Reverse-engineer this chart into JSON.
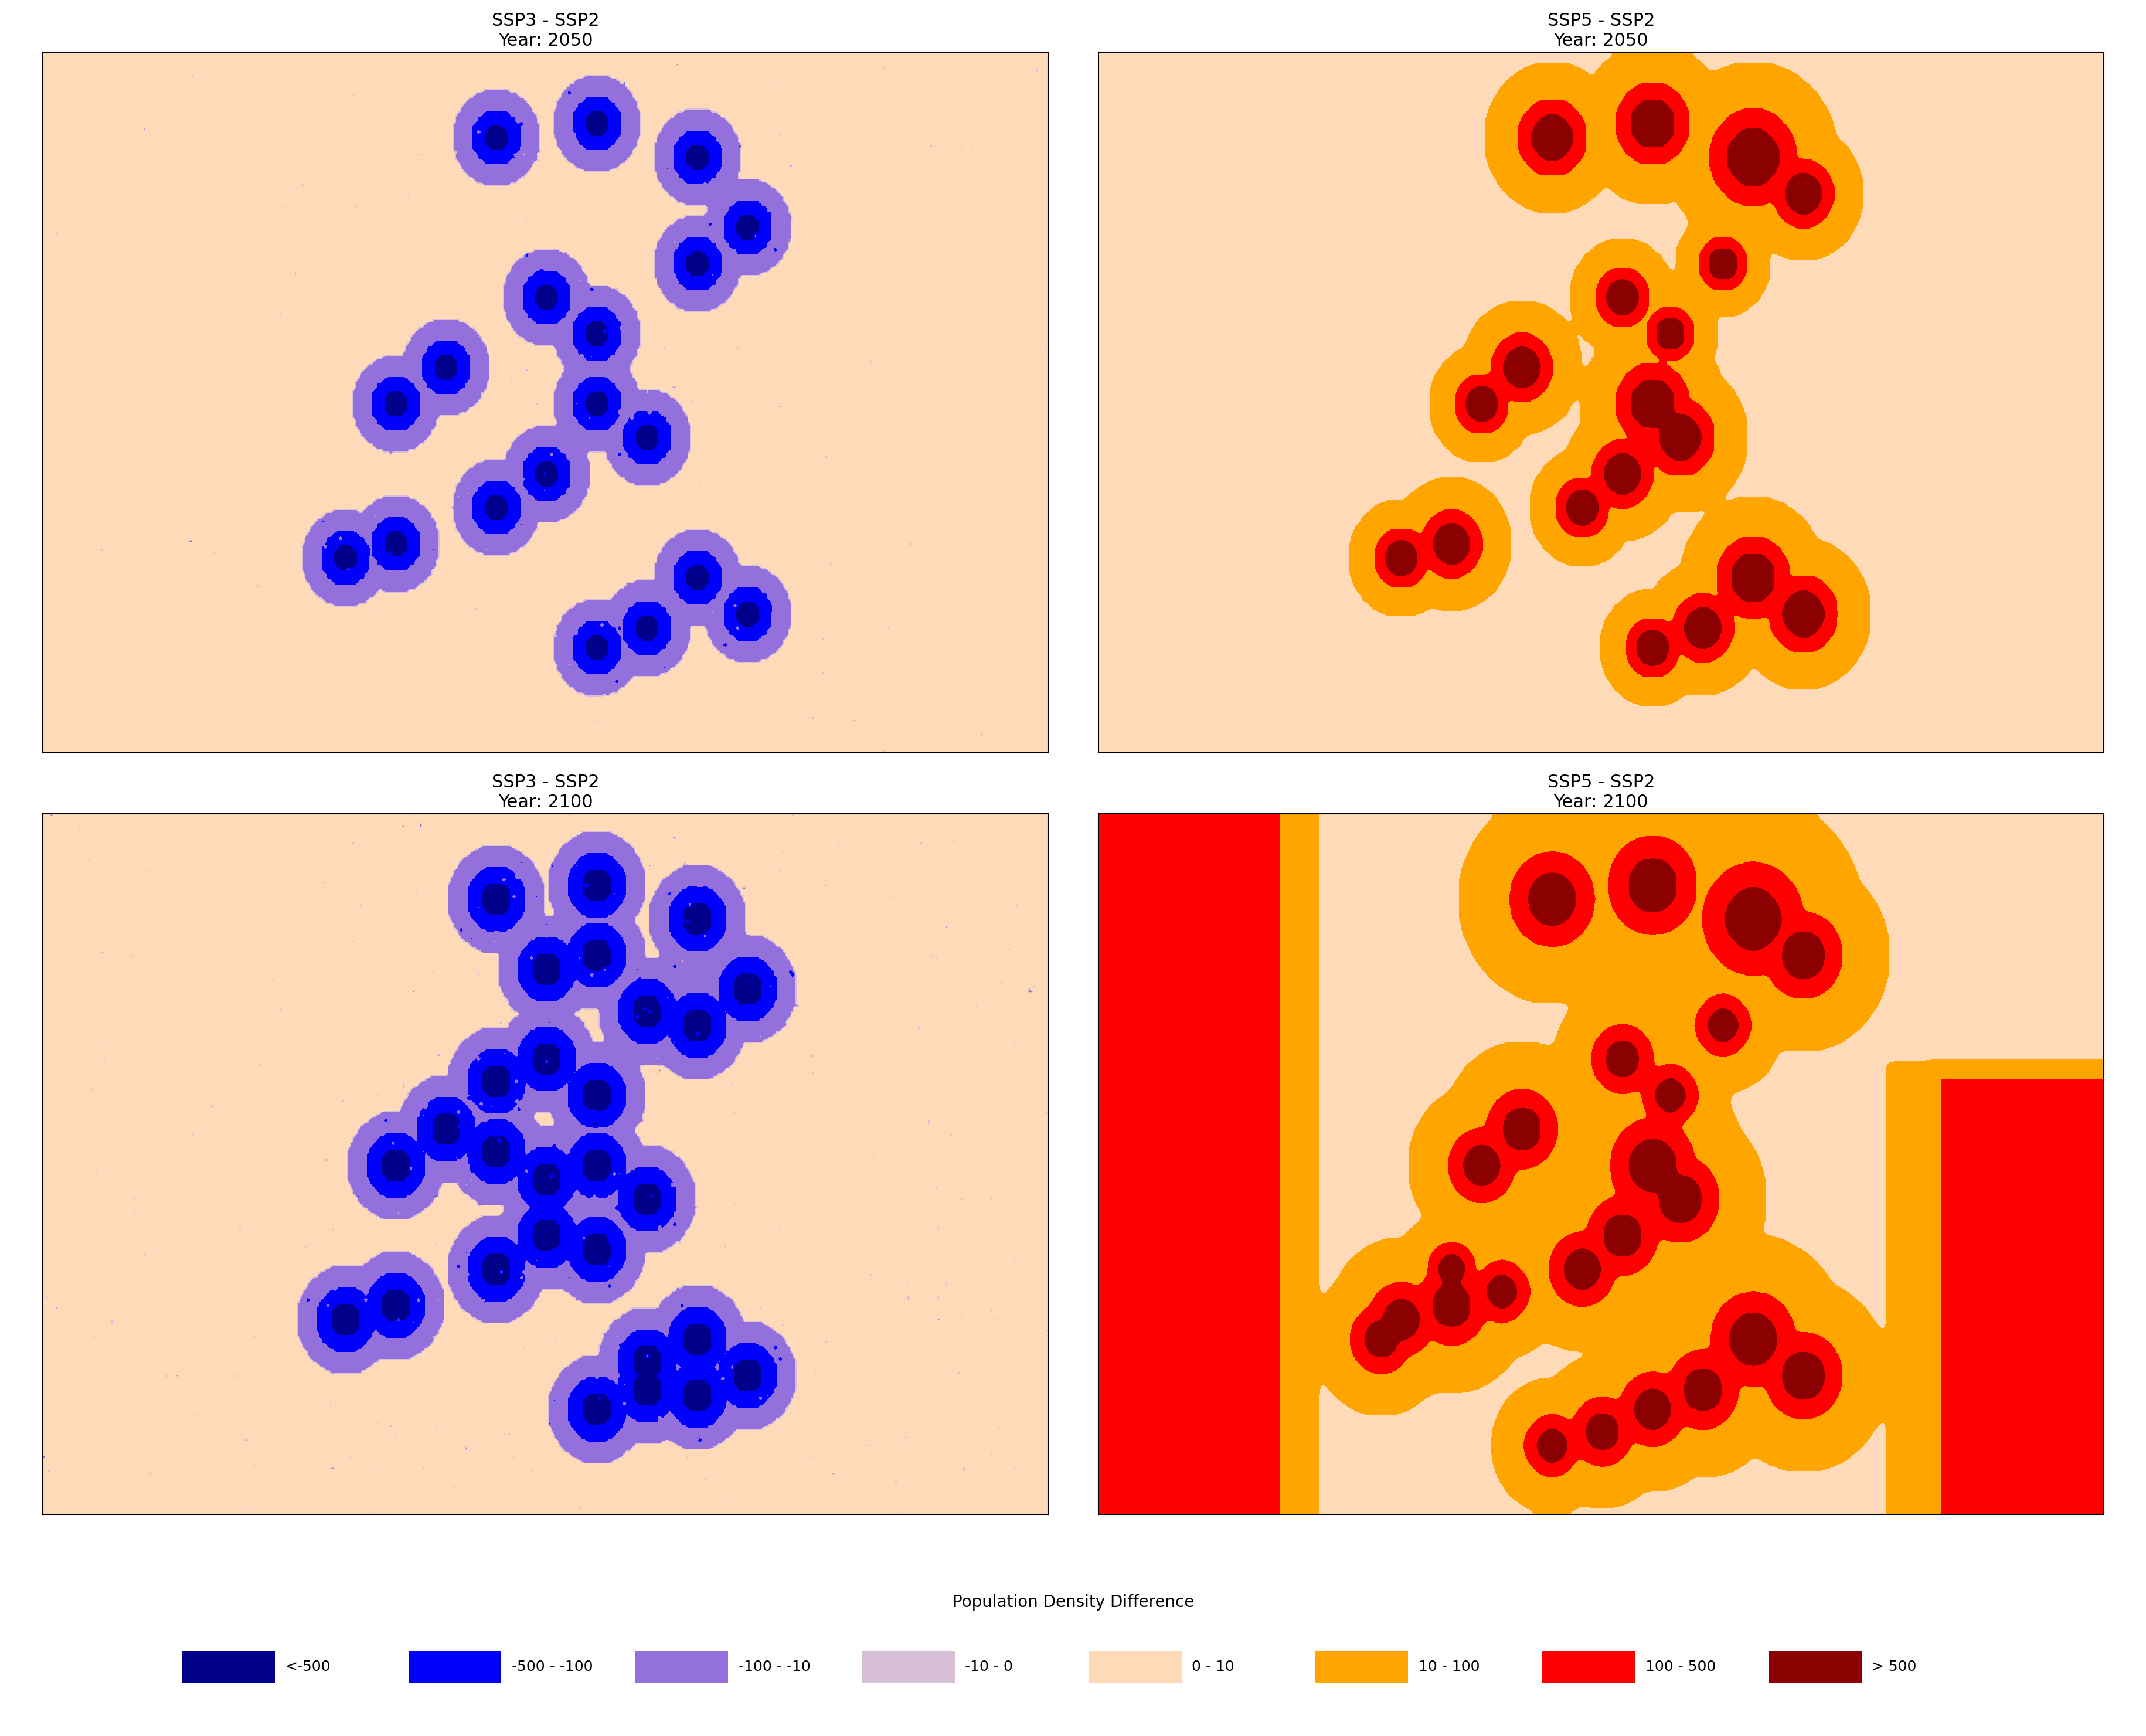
{
  "titles": [
    [
      "SSP3 - SSP2",
      "Year: 2050"
    ],
    [
      "SSP5 - SSP2",
      "Year: 2050"
    ],
    [
      "SSP3 - SSP2",
      "Year: 2100"
    ],
    [
      "SSP5 - SSP2",
      "Year: 2100"
    ]
  ],
  "legend_title": "Population Density Difference",
  "legend_labels": [
    "<-500",
    "-500 - -100",
    "-100 - -10",
    "-10 - 0",
    "0 - 10",
    "10 - 100",
    "100 - 500",
    "> 500"
  ],
  "legend_colors": [
    "#00008B",
    "#0000FF",
    "#9370DB",
    "#D8BFD8",
    "#FFDAB9",
    "#FFA500",
    "#FF0000",
    "#8B0000"
  ],
  "background_color": "#ffffff",
  "map_border_color": "#000000",
  "title_fontsize": 22,
  "legend_title_fontsize": 20,
  "legend_label_fontsize": 18
}
